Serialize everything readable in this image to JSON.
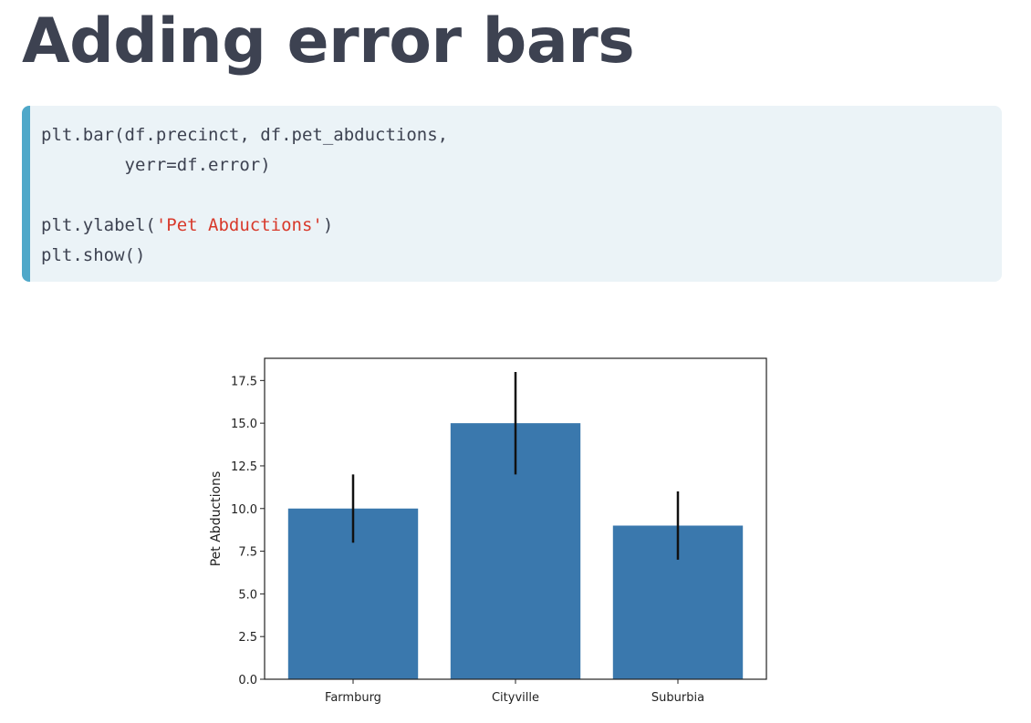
{
  "title": "Adding error bars",
  "code": {
    "lines": [
      {
        "parts": [
          {
            "text": "plt.bar(df.precinct, df.pet_abductions,",
            "kind": "plain"
          }
        ]
      },
      {
        "parts": [
          {
            "text": "        yerr=df.error)",
            "kind": "plain"
          }
        ]
      },
      {
        "parts": [
          {
            "text": "",
            "kind": "plain"
          }
        ]
      },
      {
        "parts": [
          {
            "text": "plt.ylabel(",
            "kind": "plain"
          },
          {
            "text": "'Pet Abductions'",
            "kind": "string"
          },
          {
            "text": ")",
            "kind": "plain"
          }
        ]
      },
      {
        "parts": [
          {
            "text": "plt.show()",
            "kind": "plain"
          }
        ]
      }
    ]
  },
  "chart_data": {
    "type": "bar",
    "categories": [
      "Farmburg",
      "Cityville",
      "Suburbia"
    ],
    "values": [
      10,
      15,
      9
    ],
    "errors": [
      2,
      3,
      2
    ],
    "xlabel": "",
    "ylabel": "Pet Abductions",
    "ylim": [
      0,
      18.8
    ],
    "yticks": [
      0,
      2.5,
      5,
      7.5,
      10,
      12.5,
      15,
      17.5
    ],
    "ytick_labels": [
      "0.0",
      "2.5",
      "5.0",
      "7.5",
      "10.0",
      "12.5",
      "15.0",
      "17.5"
    ],
    "bar_color": "#3a78ad",
    "error_color": "#111111",
    "grid": false,
    "legend": "none"
  }
}
